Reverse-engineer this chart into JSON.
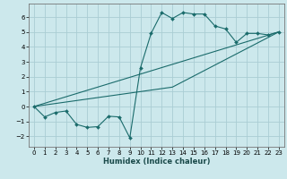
{
  "xlabel": "Humidex (Indice chaleur)",
  "background_color": "#cce8ec",
  "grid_color": "#aacdd4",
  "line_color": "#1a6b6b",
  "marker_color": "#1a6b6b",
  "xlim": [
    -0.5,
    23.5
  ],
  "ylim": [
    -2.7,
    6.9
  ],
  "xticks": [
    0,
    1,
    2,
    3,
    4,
    5,
    6,
    7,
    8,
    9,
    10,
    11,
    12,
    13,
    14,
    15,
    16,
    17,
    18,
    19,
    20,
    21,
    22,
    23
  ],
  "yticks": [
    -2,
    -1,
    0,
    1,
    2,
    3,
    4,
    5,
    6
  ],
  "series": [
    {
      "x": [
        0,
        1,
        2,
        3,
        4,
        5,
        6,
        7,
        8,
        9,
        10,
        11,
        12,
        13,
        14,
        15,
        16,
        17,
        18,
        19,
        20,
        21,
        22,
        23
      ],
      "y": [
        0,
        -0.7,
        -0.4,
        -0.3,
        -1.2,
        -1.4,
        -1.35,
        -0.65,
        -0.7,
        -2.1,
        2.6,
        4.9,
        6.3,
        5.9,
        6.3,
        6.2,
        6.2,
        5.4,
        5.2,
        4.3,
        4.9,
        4.9,
        4.8,
        5.0
      ],
      "has_markers": true
    },
    {
      "x": [
        0,
        23
      ],
      "y": [
        0,
        5.0
      ],
      "has_markers": false
    },
    {
      "x": [
        0,
        13,
        23
      ],
      "y": [
        0,
        1.3,
        5.0
      ],
      "has_markers": false
    }
  ]
}
